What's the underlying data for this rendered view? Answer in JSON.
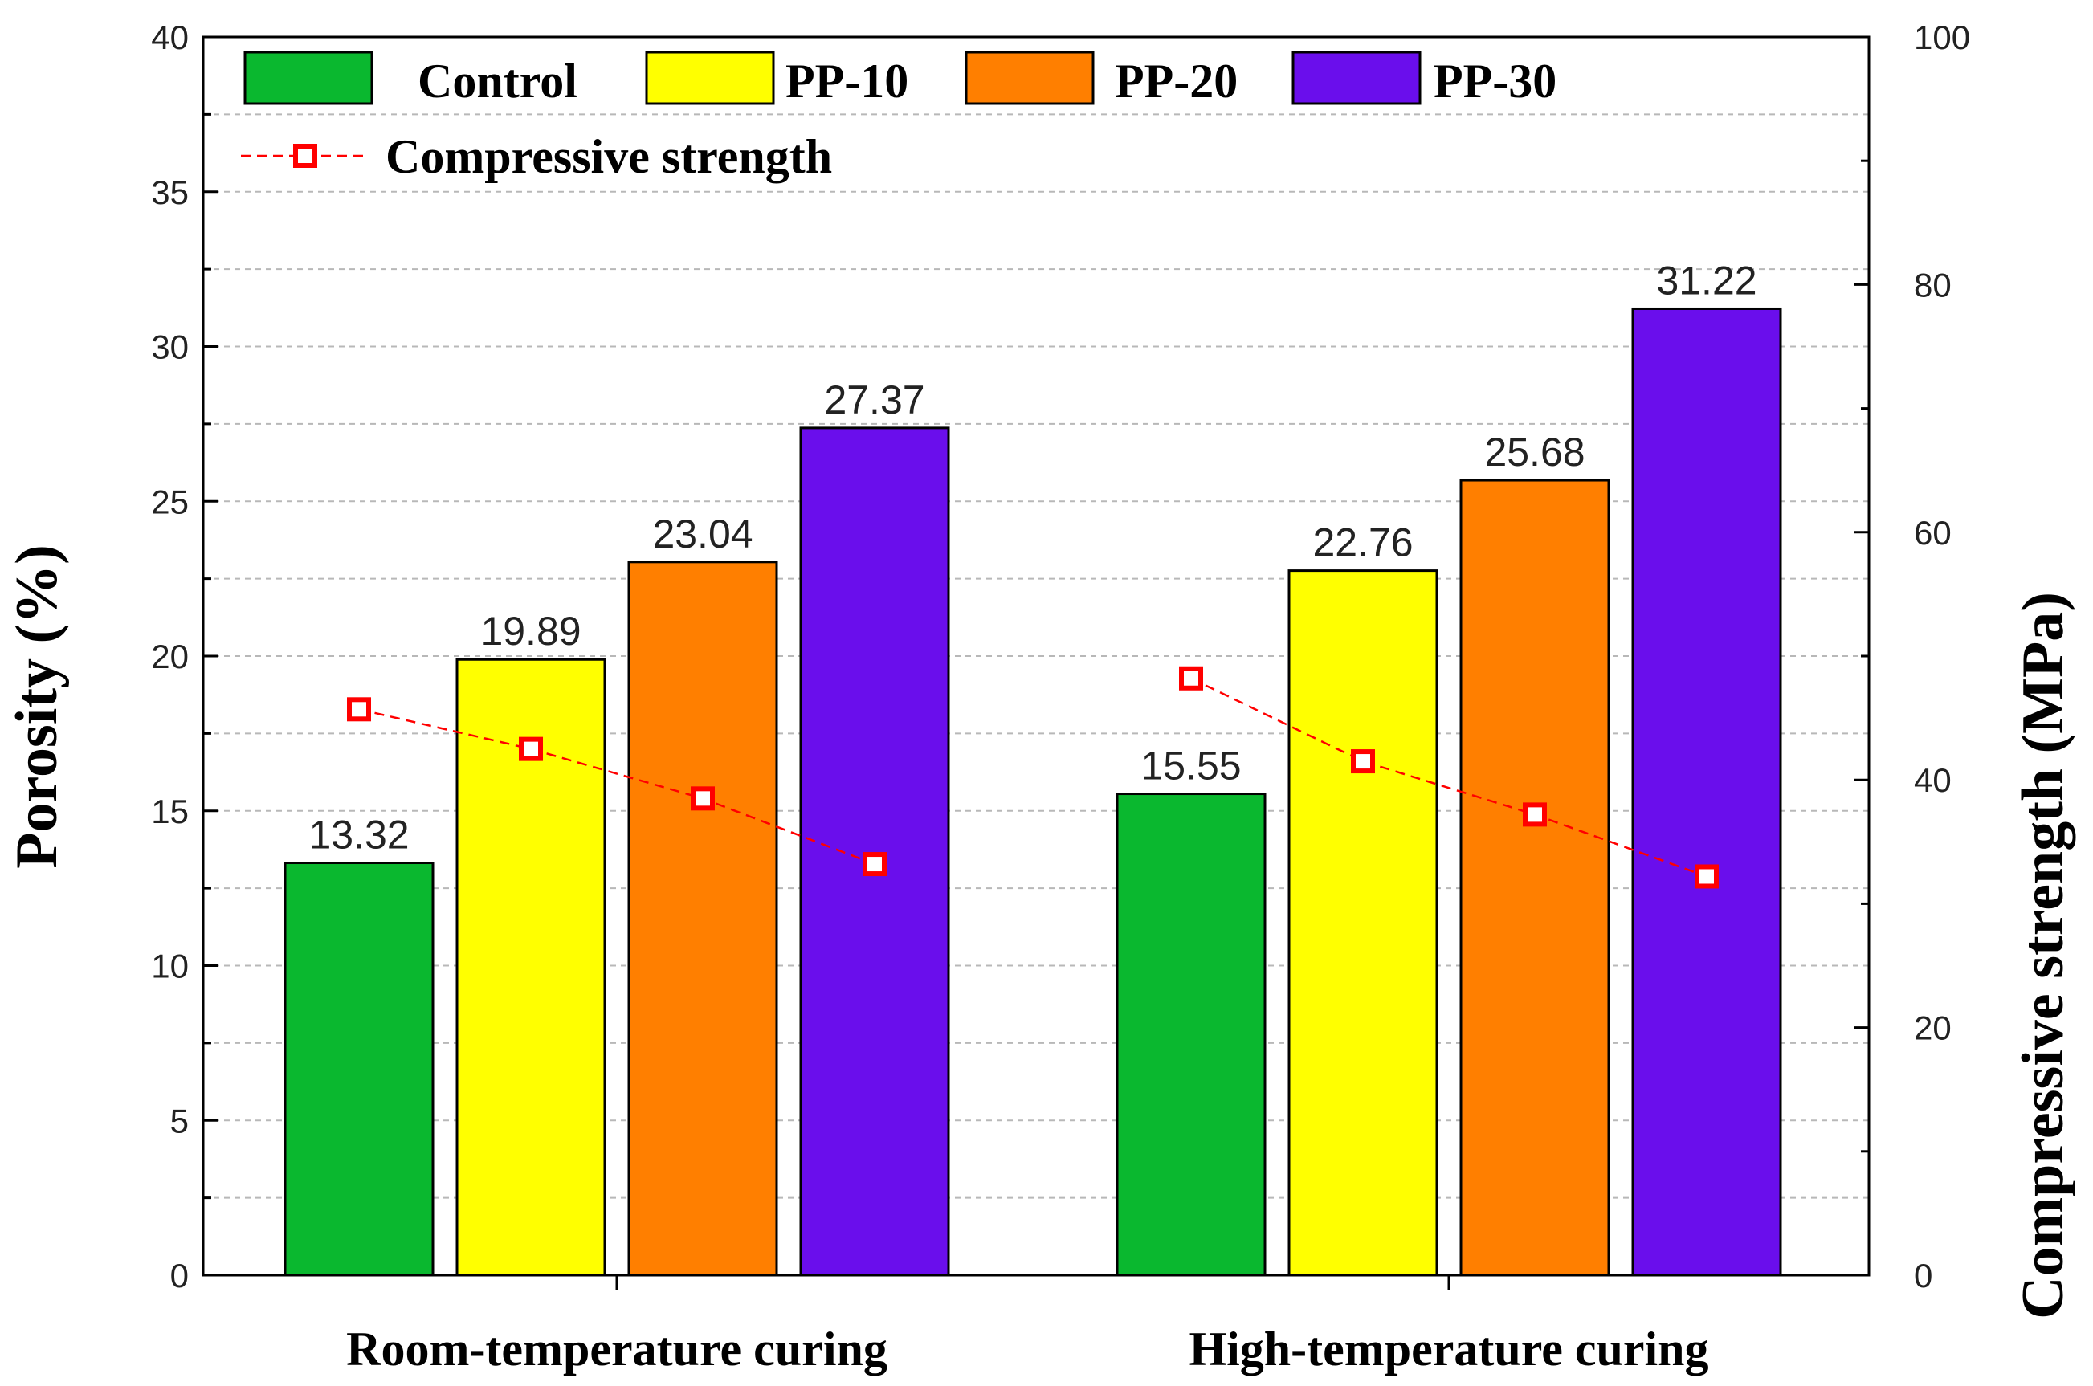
{
  "chart_data": {
    "type": "bar",
    "categories": [
      "Room-temperature curing",
      "High-temperature curing"
    ],
    "series": [
      {
        "name": "Control",
        "color": "#0ab82f",
        "values": [
          13.32,
          15.55
        ]
      },
      {
        "name": "PP-10",
        "color": "#ffff00",
        "values": [
          19.89,
          22.76
        ]
      },
      {
        "name": "PP-20",
        "color": "#ff7f00",
        "values": [
          23.04,
          25.68
        ]
      },
      {
        "name": "PP-30",
        "color": "#6a0eec",
        "values": [
          27.37,
          31.22
        ]
      }
    ],
    "line_series": {
      "name": "Compressive strength",
      "color": "#ff0000",
      "axis": "right",
      "values": [
        [
          45.7,
          42.5,
          38.5,
          33.2
        ],
        [
          48.2,
          41.5,
          37.2,
          32.2
        ]
      ]
    },
    "ylabel": "Porosity (%)",
    "ylim": [
      0,
      40
    ],
    "yticks": [
      0,
      5,
      10,
      15,
      20,
      25,
      30,
      35,
      40
    ],
    "y2label": "Compressive strength (MPa)",
    "y2lim": [
      0,
      100
    ],
    "y2ticks": [
      0,
      20,
      40,
      60,
      80,
      100
    ],
    "grid": true,
    "legend": "top-left"
  }
}
